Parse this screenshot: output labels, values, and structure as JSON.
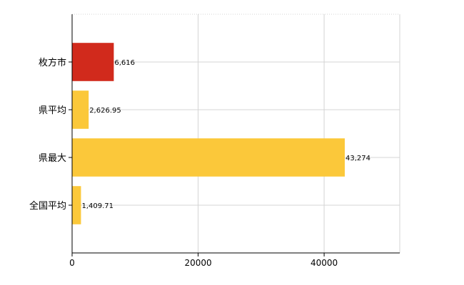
{
  "chart_data": {
    "type": "bar",
    "orientation": "horizontal",
    "categories": [
      "枚方市",
      "県平均",
      "県最大",
      "全国平均"
    ],
    "values": [
      6616,
      2626.95,
      43274,
      1409.71
    ],
    "value_labels": [
      "6,616",
      "2,626.95",
      "43,274",
      "1,409.71"
    ],
    "bar_colors": [
      "#d12a1c",
      "#fbc83a",
      "#fbc83a",
      "#fbc83a"
    ],
    "xlim": [
      0,
      52000
    ],
    "xticks": [
      0,
      20000,
      40000
    ],
    "xtick_labels": [
      "0",
      "20000",
      "40000"
    ],
    "grid": true,
    "title": "",
    "xlabel": "",
    "ylabel": ""
  }
}
